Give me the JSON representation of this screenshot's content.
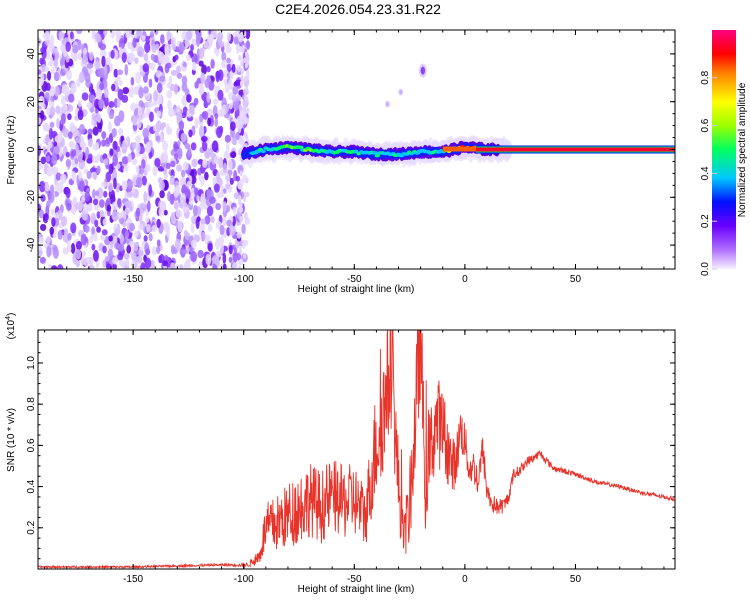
{
  "title": "C2E4.2026.054.23.31.R22",
  "chart_data": [
    {
      "type": "heatmap",
      "name": "spectrogram",
      "xlabel": "Height of straight line (km)",
      "ylabel": "Frequency (Hz)",
      "xlim": [
        -193,
        95
      ],
      "ylim": [
        -50,
        50
      ],
      "xticks": [
        -150,
        -100,
        -50,
        0,
        50
      ],
      "yticks": [
        -40,
        -20,
        0,
        20,
        40
      ],
      "xtick_labels": [
        "-150",
        "-100",
        "-50",
        "0",
        "50"
      ],
      "ytick_labels": [
        "-40",
        "-20",
        "0",
        "20",
        "40"
      ],
      "noise_region_x": [
        -193,
        -98
      ],
      "signal_track": {
        "x": [
          -100,
          -90,
          -80,
          -70,
          -60,
          -50,
          -40,
          -30,
          -20,
          -10,
          0,
          10,
          20,
          40,
          60,
          80,
          95
        ],
        "freq": [
          -2,
          0,
          1,
          0,
          -1,
          -1,
          -2,
          -2,
          -1,
          -1,
          1,
          0,
          0,
          0,
          0,
          0,
          0
        ],
        "amplitude": [
          0.2,
          0.35,
          0.4,
          0.45,
          0.35,
          0.4,
          0.35,
          0.3,
          0.35,
          0.4,
          0.8,
          0.85,
          0.95,
          0.97,
          0.97,
          0.97,
          0.97
        ]
      },
      "isolated_blobs": [
        {
          "x": -19,
          "freq": 33
        },
        {
          "x": -35,
          "freq": 19
        },
        {
          "x": -29,
          "freq": 24
        }
      ]
    },
    {
      "type": "colorbar",
      "name": "colorbar",
      "label": "Normalized spectral amplitude",
      "range": [
        0,
        1
      ],
      "ticks": [
        0.0,
        0.2,
        0.4,
        0.6,
        0.8
      ],
      "tick_labels": [
        "0.0",
        "0.2",
        "0.4",
        "0.6",
        "0.8"
      ]
    },
    {
      "type": "line",
      "name": "snr",
      "xlabel": "Height of straight line (km)",
      "ylabel": "SNR (10 * v/v)",
      "y_multiplier": "(x10",
      "y_multiplier_exp": "4",
      "y_multiplier_close": ")",
      "xlim": [
        -193,
        95
      ],
      "ylim": [
        0,
        1.16
      ],
      "xticks": [
        -150,
        -100,
        -50,
        0,
        50
      ],
      "yticks": [
        0.2,
        0.4,
        0.6,
        0.8,
        1.0
      ],
      "xtick_labels": [
        "-150",
        "-100",
        "-50",
        "0",
        "50"
      ],
      "ytick_labels": [
        "0.2",
        "0.4",
        "0.6",
        "0.8",
        "1.0"
      ],
      "color": "#e8332a",
      "series": [
        {
          "name": "SNR",
          "x": [
            -193,
            -150,
            -110,
            -98,
            -93,
            -90,
            -85,
            -80,
            -75,
            -70,
            -65,
            -60,
            -55,
            -50,
            -45,
            -40,
            -36,
            -33,
            -31,
            -28,
            -25,
            -22,
            -20,
            -18,
            -16,
            -13,
            -10,
            -8,
            -6,
            -4,
            -2,
            0,
            2,
            4,
            6,
            8,
            10,
            12,
            15,
            18,
            20,
            22,
            25,
            28,
            31,
            34,
            40,
            50,
            60,
            70,
            80,
            90,
            95
          ],
          "y": [
            0.01,
            0.01,
            0.02,
            0.02,
            0.06,
            0.2,
            0.22,
            0.26,
            0.3,
            0.34,
            0.3,
            0.36,
            0.32,
            0.34,
            0.25,
            0.62,
            0.8,
            1.02,
            0.55,
            0.16,
            0.28,
            0.78,
            1.15,
            0.4,
            0.55,
            0.72,
            0.68,
            0.6,
            0.5,
            0.52,
            0.68,
            0.62,
            0.48,
            0.5,
            0.42,
            0.58,
            0.38,
            0.32,
            0.3,
            0.31,
            0.36,
            0.46,
            0.48,
            0.52,
            0.54,
            0.56,
            0.49,
            0.46,
            0.42,
            0.4,
            0.37,
            0.35,
            0.34
          ],
          "noise_amplitude": [
            0.005,
            0.005,
            0.005,
            0.01,
            0.04,
            0.12,
            0.14,
            0.16,
            0.18,
            0.18,
            0.18,
            0.18,
            0.18,
            0.18,
            0.15,
            0.28,
            0.3,
            0.32,
            0.25,
            0.12,
            0.18,
            0.3,
            0.3,
            0.22,
            0.22,
            0.24,
            0.2,
            0.18,
            0.14,
            0.12,
            0.12,
            0.1,
            0.08,
            0.08,
            0.08,
            0.08,
            0.06,
            0.05,
            0.04,
            0.04,
            0.03,
            0.03,
            0.025,
            0.025,
            0.02,
            0.02,
            0.015,
            0.012,
            0.01,
            0.01,
            0.01,
            0.01,
            0.01
          ]
        }
      ]
    }
  ]
}
